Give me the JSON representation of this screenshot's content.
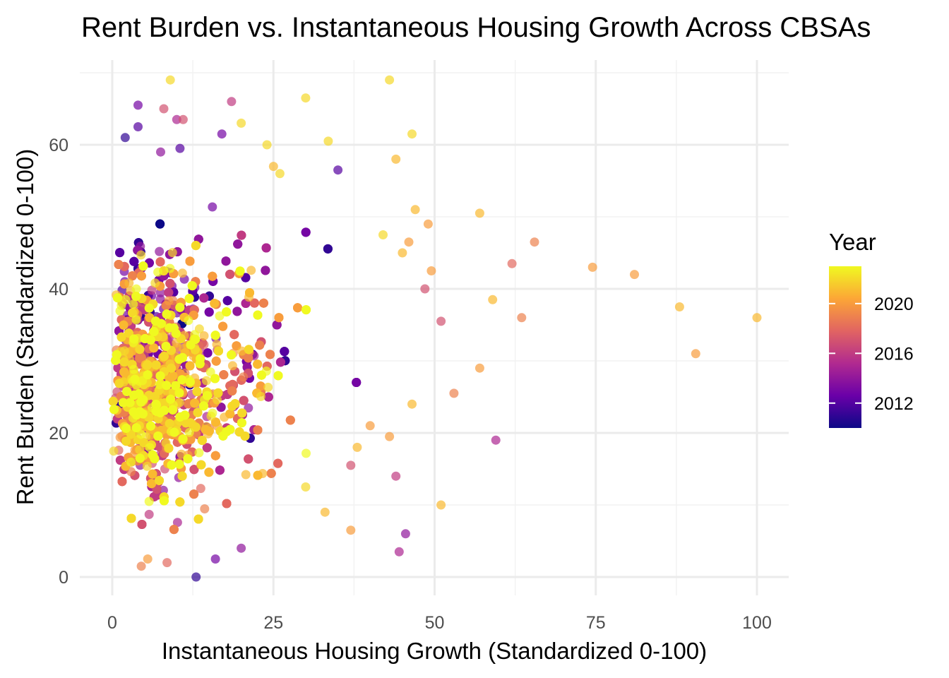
{
  "chart_data": {
    "type": "scatter",
    "title": "Rent Burden vs. Instantaneous Housing Growth Across CBSAs",
    "xlabel": "Instantaneous Housing Growth (Standardized 0-100)",
    "ylabel": "Rent Burden (Standardized 0-100)",
    "xlim": [
      -4,
      105
    ],
    "ylim": [
      -2.5,
      70
    ],
    "x_ticks": [
      0,
      25,
      50,
      75,
      100
    ],
    "x_tick_labels": [
      "0",
      "25",
      "50",
      "75",
      "100"
    ],
    "y_ticks": [
      0,
      20,
      40,
      60
    ],
    "y_tick_labels": [
      "0",
      "20",
      "40",
      "60"
    ],
    "grid": true,
    "color_scale": {
      "title": "Year",
      "palette": "plasma",
      "range": [
        2010,
        2023
      ],
      "ticks": [
        2012,
        2016,
        2020
      ],
      "tick_labels": [
        "2012",
        "2016",
        "2020"
      ],
      "colors": [
        "#0d0887",
        "#6a00a8",
        "#b12a90",
        "#e16462",
        "#fca636",
        "#f0f921"
      ]
    },
    "legend_position": "right",
    "points": [
      [
        9,
        69,
        2022
      ],
      [
        43,
        69,
        2022
      ],
      [
        30,
        66.5,
        2022
      ],
      [
        18.5,
        66,
        2016
      ],
      [
        4,
        65.5,
        2013
      ],
      [
        8,
        65,
        2017
      ],
      [
        10,
        63.5,
        2015
      ],
      [
        11,
        63.5,
        2017
      ],
      [
        4,
        62.5,
        2012
      ],
      [
        17,
        61.5,
        2013
      ],
      [
        2,
        61,
        2011
      ],
      [
        46.5,
        61.5,
        2022
      ],
      [
        20,
        63,
        2022
      ],
      [
        24,
        60,
        2022
      ],
      [
        33.5,
        60.5,
        2022
      ],
      [
        10.5,
        59.5,
        2012
      ],
      [
        7.5,
        59,
        2014
      ],
      [
        44,
        58,
        2021
      ],
      [
        25,
        57,
        2021
      ],
      [
        35,
        56.5,
        2012
      ],
      [
        26,
        56,
        2022
      ],
      [
        47,
        51,
        2021
      ],
      [
        57,
        50.5,
        2021
      ],
      [
        49,
        49,
        2020
      ],
      [
        65.5,
        46.5,
        2019
      ],
      [
        62,
        43.5,
        2018
      ],
      [
        74.5,
        43,
        2020
      ],
      [
        81,
        42,
        2020
      ],
      [
        88,
        37.5,
        2021
      ],
      [
        100,
        36,
        2021
      ],
      [
        63.5,
        36,
        2019
      ],
      [
        59,
        38.5,
        2021
      ],
      [
        51,
        35.5,
        2017
      ],
      [
        48.5,
        40,
        2017
      ],
      [
        49.5,
        42.5,
        2020
      ],
      [
        45,
        45,
        2021
      ],
      [
        46,
        46.5,
        2020
      ],
      [
        42,
        47.5,
        2022
      ],
      [
        90.5,
        31,
        2020
      ],
      [
        57,
        29,
        2020
      ],
      [
        53,
        25.5,
        2019
      ],
      [
        46.5,
        24,
        2021
      ],
      [
        59.5,
        19,
        2015
      ],
      [
        51,
        10,
        2021
      ],
      [
        45.5,
        6,
        2014
      ],
      [
        44.5,
        3.5,
        2015
      ],
      [
        44,
        14,
        2016
      ],
      [
        43,
        19.5,
        2020
      ],
      [
        37,
        15.5,
        2017
      ],
      [
        37,
        6.5,
        2020
      ],
      [
        40,
        21,
        2020
      ],
      [
        38,
        18,
        2021
      ],
      [
        13,
        0,
        2011
      ],
      [
        16,
        2.5,
        2013
      ],
      [
        20,
        4,
        2014
      ],
      [
        4.5,
        1.5,
        2019
      ],
      [
        8.5,
        2,
        2018
      ],
      [
        5.5,
        2.5,
        2020
      ],
      [
        30,
        12.5,
        2022
      ],
      [
        33,
        9,
        2021
      ]
    ],
    "cluster": {
      "n": 3800,
      "seed": 7
    }
  }
}
